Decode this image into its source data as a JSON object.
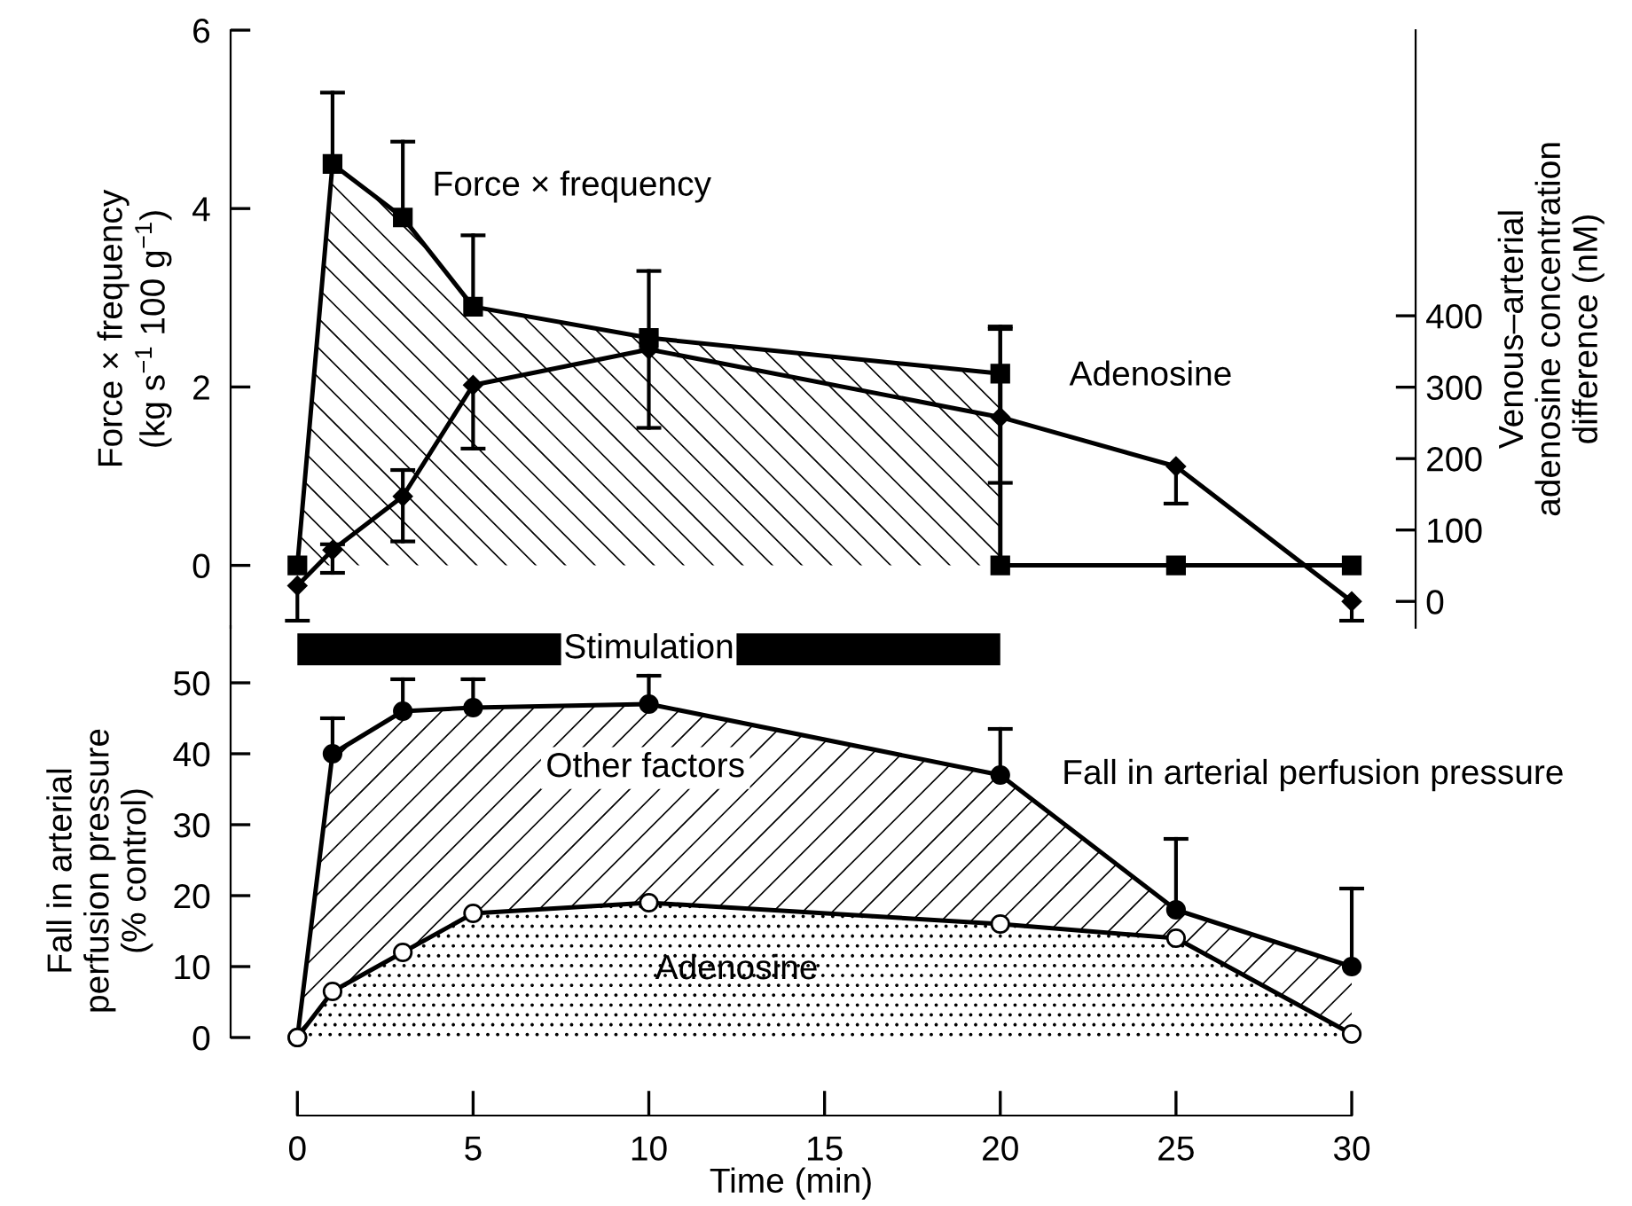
{
  "chart_data": [
    {
      "type": "line",
      "ylabel": "Force × frequency\n(kg s$^{−1}$ 100 g$^{−1}$)",
      "y2label": "Venous–arterial\nadenosine concentration\ndifference (nM)",
      "xlim": [
        -1.9,
        30
      ],
      "ylim": [
        -0.7,
        6
      ],
      "yticks": [
        0,
        2,
        4,
        6
      ],
      "y2lim": [
        -37,
        800
      ],
      "y2ticks": [
        0,
        100,
        200,
        300,
        400
      ],
      "tick_labels": "y",
      "grid": false,
      "series": [
        {
          "name": "Force × frequency",
          "type": "area",
          "color": "#000000",
          "marker": "square",
          "x": [
            0,
            1,
            3,
            5,
            10,
            20,
            20,
            25,
            30
          ],
          "values": [
            0,
            4.5,
            3.9,
            2.9,
            2.55,
            2.15,
            0,
            0,
            0
          ],
          "errors": [
            null,
            [
              4.5,
              5.3
            ],
            [
              3.9,
              4.75
            ],
            [
              2.9,
              3.7
            ],
            [
              2.55,
              3.3
            ],
            [
              2.15,
              2.65
            ],
            null,
            null,
            null
          ]
        },
        {
          "name": "Adenosine",
          "axis": "y2",
          "color": "#000000",
          "marker": "diamond",
          "x": [
            0,
            1,
            3,
            5,
            10,
            20,
            25,
            30
          ],
          "values": [
            22,
            72,
            147,
            303,
            353,
            258,
            189,
            0
          ],
          "errors": [
            [
              -27,
              22
            ],
            [
              40,
              80
            ],
            [
              84,
              184
            ],
            [
              214,
              303
            ],
            [
              243,
              353
            ],
            [
              166,
              385
            ],
            [
              137,
              189
            ],
            [
              -27,
              0
            ]
          ]
        }
      ]
    },
    {
      "type": "area",
      "xlabel": "Time (min)",
      "ylabel": "Fall in arterial\nperfusion pressure\n(% control)",
      "xlim": [
        -1.9,
        30
      ],
      "ylim": [
        -11,
        58
      ],
      "xticks": [
        0,
        5,
        10,
        15,
        20,
        25,
        30
      ],
      "yticks": [
        0,
        10,
        20,
        30,
        40,
        50
      ],
      "grid": false,
      "bands": [
        {
          "axis": "x",
          "from": 0,
          "to": 20,
          "label": "Stimulation",
          "color": "#000000"
        }
      ],
      "annotations": [
        "Other factors"
      ],
      "series": [
        {
          "name": "Fall in arterial perfusion pressure",
          "color": "#000000",
          "marker": "circle",
          "x": [
            0,
            1,
            3,
            5,
            10,
            20,
            25,
            30
          ],
          "values": [
            0,
            40,
            46,
            46.5,
            47,
            37,
            18,
            10
          ],
          "errors": [
            null,
            [
              40,
              45
            ],
            [
              46,
              50.5
            ],
            [
              46.5,
              50.5
            ],
            [
              47,
              51
            ],
            [
              37,
              43.5
            ],
            [
              18,
              28
            ],
            [
              10,
              21
            ]
          ]
        },
        {
          "name": "Adenosine",
          "color": "#000000",
          "marker": "circle",
          "x": [
            0,
            1,
            3,
            5,
            10,
            20,
            25,
            30
          ],
          "values": [
            0,
            6.5,
            12,
            17.5,
            19,
            16,
            14,
            0.5
          ]
        }
      ]
    }
  ]
}
